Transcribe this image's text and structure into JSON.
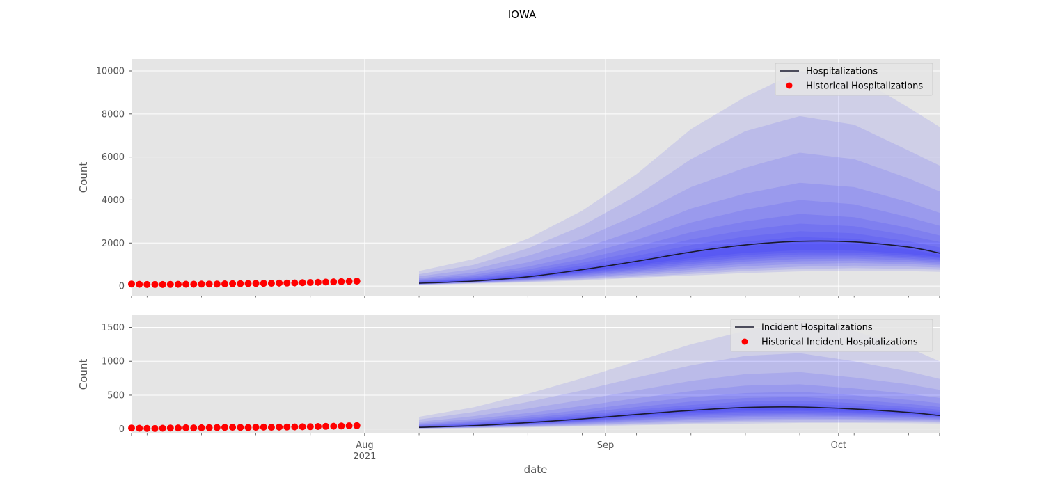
{
  "figure_title": "IOWA",
  "colors": {
    "panel_bg": "#e5e5e5",
    "grid": "#ffffff",
    "band": "#1010ff",
    "median": "#1a1a2e",
    "historical": "#ff0000",
    "tick_text": "#555555"
  },
  "chart_data": [
    {
      "type": "area",
      "title": "",
      "xlabel": "",
      "ylabel": "Count",
      "xlim": [
        "2021-07-02",
        "2021-10-14"
      ],
      "ylim": [
        -450,
        10550
      ],
      "yticks": [
        0,
        2000,
        4000,
        6000,
        8000,
        10000
      ],
      "ytick_labels": [
        "0",
        "2000",
        "4000",
        "6000",
        "8000",
        "10000"
      ],
      "grid": true,
      "legend_position": "top-right",
      "legend": [
        "Hospitalizations",
        "Historical Hospitalizations"
      ],
      "historical": {
        "name": "Historical Hospitalizations",
        "start": "2021-07-02",
        "values": [
          90,
          80,
          70,
          70,
          70,
          75,
          80,
          85,
          85,
          90,
          90,
          95,
          100,
          105,
          110,
          115,
          120,
          125,
          130,
          135,
          140,
          145,
          155,
          165,
          175,
          185,
          195,
          205,
          215,
          225
        ]
      },
      "forecast": {
        "name": "Hospitalizations",
        "x": [
          "2021-08-08",
          "2021-08-15",
          "2021-08-22",
          "2021-08-29",
          "2021-09-05",
          "2021-09-12",
          "2021-09-19",
          "2021-09-26",
          "2021-10-03",
          "2021-10-10",
          "2021-10-14"
        ],
        "median": [
          130,
          230,
          430,
          760,
          1150,
          1580,
          1910,
          2080,
          2050,
          1810,
          1530
        ],
        "quantile_bands": [
          {
            "lower": [
              50,
              110,
              170,
              260,
              380,
              490,
              600,
              680,
              710,
              690,
              660
            ],
            "upper": [
              700,
              1250,
              2200,
              3500,
              5200,
              7300,
              8800,
              10000,
              9800,
              8300,
              7400
            ]
          },
          {
            "lower": [
              60,
              130,
              200,
              300,
              430,
              560,
              700,
              790,
              830,
              800,
              760
            ],
            "upper": [
              550,
              980,
              1750,
              2800,
              4200,
              5900,
              7200,
              7900,
              7500,
              6300,
              5600
            ]
          },
          {
            "lower": [
              70,
              140,
              230,
              350,
              500,
              650,
              800,
              900,
              950,
              910,
              860
            ],
            "upper": [
              450,
              780,
              1400,
              2200,
              3300,
              4600,
              5500,
              6200,
              5900,
              5000,
              4400
            ]
          },
          {
            "lower": [
              80,
              155,
              260,
              400,
              570,
              750,
              920,
              1030,
              1070,
              1020,
              960
            ],
            "upper": [
              360,
              620,
              1100,
              1750,
              2600,
              3600,
              4300,
              4800,
              4600,
              3900,
              3400
            ]
          },
          {
            "lower": [
              90,
              170,
              290,
              450,
              640,
              840,
              1030,
              1150,
              1180,
              1110,
              1040
            ],
            "upper": [
              300,
              520,
              900,
              1450,
              2150,
              2950,
              3550,
              4000,
              3800,
              3200,
              2800
            ]
          },
          {
            "lower": [
              95,
              180,
              315,
              500,
              710,
              940,
              1140,
              1260,
              1280,
              1200,
              1110
            ],
            "upper": [
              255,
              445,
              770,
              1240,
              1830,
              2500,
              3000,
              3350,
              3200,
              2700,
              2350
            ]
          },
          {
            "lower": [
              100,
              190,
              340,
              545,
              780,
              1030,
              1240,
              1370,
              1380,
              1280,
              1180
            ],
            "upper": [
              220,
              385,
              670,
              1080,
              1590,
              2170,
              2600,
              2900,
              2780,
              2350,
              2050
            ]
          },
          {
            "lower": [
              105,
              200,
              365,
              590,
              850,
              1120,
              1340,
              1470,
              1470,
              1350,
              1240
            ],
            "upper": [
              195,
              340,
              590,
              950,
              1400,
              1910,
              2300,
              2550,
              2450,
              2080,
              1800
            ]
          },
          {
            "lower": [
              110,
              205,
              385,
              635,
              920,
              1210,
              1440,
              1570,
              1560,
              1420,
              1300
            ],
            "upper": [
              175,
              305,
              530,
              850,
              1250,
              1710,
              2060,
              2280,
              2200,
              1870,
              1610
            ]
          },
          {
            "lower": [
              115,
              210,
              400,
              670,
              990,
              1300,
              1540,
              1670,
              1650,
              1490,
              1360
            ],
            "upper": [
              160,
              280,
              480,
              775,
              1130,
              1550,
              1860,
              2040,
              1990,
              1700,
              1460
            ]
          }
        ]
      }
    },
    {
      "type": "area",
      "title": "",
      "xlabel": "date",
      "ylabel": "Count",
      "xlim": [
        "2021-07-02",
        "2021-10-14"
      ],
      "ylim": [
        -65,
        1680
      ],
      "yticks": [
        0,
        500,
        1000,
        1500
      ],
      "ytick_labels": [
        "0",
        "500",
        "1000",
        "1500"
      ],
      "xtick_labels": [
        {
          "date": "2021-08-01",
          "label": "Aug",
          "sublabel": "2021"
        },
        {
          "date": "2021-09-01",
          "label": "Sep",
          "sublabel": ""
        },
        {
          "date": "2021-10-01",
          "label": "Oct",
          "sublabel": ""
        }
      ],
      "grid": true,
      "legend_position": "top-right",
      "legend": [
        "Incident Hospitalizations",
        "Historical Incident Hospitalizations"
      ],
      "historical": {
        "name": "Historical Incident Hospitalizations",
        "start": "2021-07-02",
        "values": [
          15,
          12,
          10,
          8,
          12,
          14,
          16,
          18,
          16,
          18,
          20,
          22,
          24,
          26,
          24,
          22,
          26,
          28,
          26,
          28,
          30,
          32,
          34,
          36,
          38,
          40,
          42,
          45,
          48,
          50
        ]
      },
      "forecast": {
        "name": "Incident Hospitalizations",
        "x": [
          "2021-08-08",
          "2021-08-15",
          "2021-08-22",
          "2021-08-29",
          "2021-09-05",
          "2021-09-12",
          "2021-09-19",
          "2021-09-26",
          "2021-10-03",
          "2021-10-10",
          "2021-10-14"
        ],
        "median": [
          25,
          50,
          95,
          150,
          215,
          275,
          318,
          325,
          295,
          245,
          200
        ],
        "quantile_bands": [
          {
            "lower": [
              8,
              15,
              25,
              40,
              55,
              70,
              80,
              90,
              90,
              85,
              80
            ],
            "upper": [
              180,
              320,
              520,
              750,
              1000,
              1250,
              1450,
              1600,
              1450,
              1200,
              1000
            ]
          },
          {
            "lower": [
              10,
              18,
              32,
              50,
              70,
              88,
              100,
              110,
              110,
              102,
              96
            ],
            "upper": [
              140,
              250,
              400,
              570,
              760,
              940,
              1080,
              1120,
              1000,
              850,
              740
            ]
          },
          {
            "lower": [
              12,
              22,
              40,
              62,
              86,
              108,
              122,
              132,
              130,
              120,
              112
            ],
            "upper": [
              105,
              190,
              300,
              430,
              570,
              710,
              810,
              840,
              760,
              660,
              580
            ]
          },
          {
            "lower": [
              14,
              26,
              48,
              75,
              104,
              130,
              146,
              154,
              150,
              138,
              128
            ],
            "upper": [
              82,
              150,
              235,
              340,
              455,
              560,
              640,
              660,
              600,
              520,
              460
            ]
          },
          {
            "lower": [
              16,
              30,
              56,
              88,
              122,
              152,
              170,
              178,
              170,
              156,
              142
            ],
            "upper": [
              66,
              122,
              195,
              280,
              380,
              470,
              530,
              550,
              500,
              430,
              380
            ]
          },
          {
            "lower": [
              17,
              33,
              63,
              99,
              139,
              172,
              193,
              200,
              190,
              172,
              156
            ],
            "upper": [
              55,
              102,
              165,
              240,
              325,
              405,
              458,
              474,
              432,
              370,
              325
            ]
          },
          {
            "lower": [
              18,
              36,
              70,
              110,
              156,
              193,
              216,
              222,
              210,
              188,
              168
            ],
            "upper": [
              47,
              88,
              145,
              210,
              285,
              355,
              405,
              418,
              382,
              326,
              284
            ]
          },
          {
            "lower": [
              19,
              39,
              76,
              120,
              172,
              213,
              238,
              244,
              228,
              203,
              179
            ],
            "upper": [
              41,
              77,
              128,
              188,
              255,
              318,
              363,
              375,
              343,
              291,
              252
            ]
          },
          {
            "lower": [
              20,
              42,
              82,
              130,
              187,
              233,
              260,
              266,
              246,
              217,
              189
            ],
            "upper": [
              36,
              68,
              115,
              170,
              232,
              290,
              330,
              340,
              312,
              263,
              227
            ]
          },
          {
            "lower": [
              21,
              44,
              87,
              139,
              200,
              252,
              282,
              288,
              263,
              230,
              198
            ],
            "upper": [
              32,
              61,
              104,
              157,
              214,
              268,
              304,
              312,
              286,
              240,
              206
            ]
          }
        ]
      }
    }
  ]
}
